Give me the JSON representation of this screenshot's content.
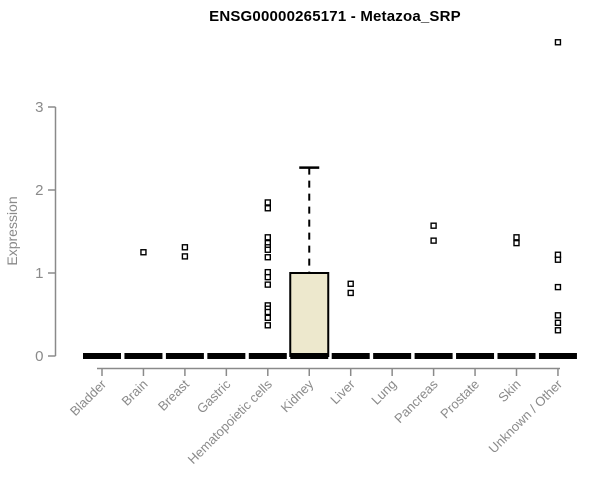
{
  "chart_data": {
    "type": "boxplot",
    "title": "ENSG00000265171 - Metazoa_SRP",
    "ylabel": "Expression",
    "xlabel": "",
    "ylim": [
      0,
      3
    ],
    "yticks": [
      0,
      1,
      2,
      3
    ],
    "grid": false,
    "legend": null,
    "colors": {
      "box_fill": "#EDE8CD",
      "box_stroke": "#000000",
      "axis": "#8a8a8a",
      "tick_text": "#8a8a8a",
      "title_text": "#000000",
      "outlier_fill": "#ffffff"
    },
    "categories": [
      "Bladder",
      "Brain",
      "Breast",
      "Gastric",
      "Hematopoietic cells",
      "Kidney",
      "Liver",
      "Lung",
      "Pancreas",
      "Prostate",
      "Skin",
      "Unknown / Other"
    ],
    "boxes": [
      {
        "category": "Bladder",
        "median": 0,
        "q1": 0,
        "q3": 0,
        "whisker_low": 0,
        "whisker_high": 0,
        "outliers": []
      },
      {
        "category": "Brain",
        "median": 0,
        "q1": 0,
        "q3": 0,
        "whisker_low": 0,
        "whisker_high": 0,
        "outliers": [
          1.25
        ]
      },
      {
        "category": "Breast",
        "median": 0,
        "q1": 0,
        "q3": 0,
        "whisker_low": 0,
        "whisker_high": 0,
        "outliers": [
          1.31,
          1.2
        ]
      },
      {
        "category": "Gastric",
        "median": 0,
        "q1": 0,
        "q3": 0,
        "whisker_low": 0,
        "whisker_high": 0,
        "outliers": []
      },
      {
        "category": "Hematopoietic cells",
        "median": 0,
        "q1": 0,
        "q3": 0,
        "whisker_low": 0,
        "whisker_high": 0,
        "outliers": [
          1.85,
          1.78,
          1.43,
          1.36,
          1.31,
          1.28,
          1.19,
          1.01,
          0.95,
          0.86,
          0.61,
          0.57,
          0.53,
          0.46,
          0.37
        ]
      },
      {
        "category": "Kidney",
        "median": 0,
        "q1": 0,
        "q3": 1.0,
        "whisker_low": 0,
        "whisker_high": 2.27,
        "outliers": []
      },
      {
        "category": "Liver",
        "median": 0,
        "q1": 0,
        "q3": 0,
        "whisker_low": 0,
        "whisker_high": 0,
        "outliers": [
          0.87,
          0.76
        ]
      },
      {
        "category": "Lung",
        "median": 0,
        "q1": 0,
        "q3": 0,
        "whisker_low": 0,
        "whisker_high": 0,
        "outliers": []
      },
      {
        "category": "Pancreas",
        "median": 0,
        "q1": 0,
        "q3": 0,
        "whisker_low": 0,
        "whisker_high": 0,
        "outliers": [
          1.57,
          1.39
        ]
      },
      {
        "category": "Prostate",
        "median": 0,
        "q1": 0,
        "q3": 0,
        "whisker_low": 0,
        "whisker_high": 0,
        "outliers": []
      },
      {
        "category": "Skin",
        "median": 0,
        "q1": 0,
        "q3": 0,
        "whisker_low": 0,
        "whisker_high": 0,
        "outliers": [
          1.43,
          1.36
        ]
      },
      {
        "category": "Unknown / Other",
        "median": 0,
        "q1": 0,
        "q3": 0,
        "whisker_low": 0,
        "whisker_high": 0,
        "outliers": [
          3.78,
          1.22,
          1.16,
          0.83,
          0.49,
          0.4,
          0.31
        ]
      }
    ]
  }
}
